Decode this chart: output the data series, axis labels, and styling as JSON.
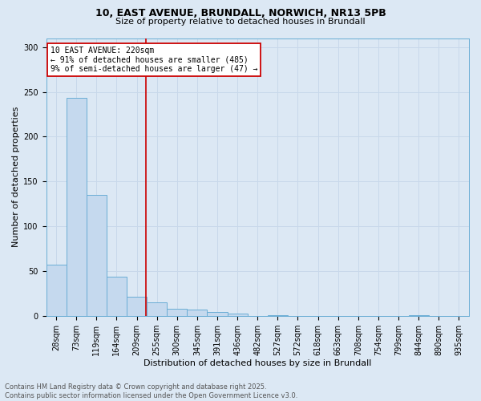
{
  "title_line1": "10, EAST AVENUE, BRUNDALL, NORWICH, NR13 5PB",
  "title_line2": "Size of property relative to detached houses in Brundall",
  "categories": [
    "28sqm",
    "73sqm",
    "119sqm",
    "164sqm",
    "209sqm",
    "255sqm",
    "300sqm",
    "345sqm",
    "391sqm",
    "436sqm",
    "482sqm",
    "527sqm",
    "572sqm",
    "618sqm",
    "663sqm",
    "708sqm",
    "754sqm",
    "799sqm",
    "844sqm",
    "890sqm",
    "935sqm"
  ],
  "values": [
    57,
    243,
    135,
    44,
    22,
    15,
    8,
    7,
    5,
    3,
    0,
    1,
    0,
    0,
    0,
    0,
    0,
    0,
    1,
    0,
    0
  ],
  "bar_color": "#c5d9ee",
  "bar_edge_color": "#6aadd5",
  "grid_color": "#c8d8ea",
  "background_color": "#dce8f4",
  "vline_x_index": 4.47,
  "vline_color": "#cc0000",
  "annotation_text": "10 EAST AVENUE: 220sqm\n← 91% of detached houses are smaller (485)\n9% of semi-detached houses are larger (47) →",
  "annotation_box_facecolor": "#ffffff",
  "annotation_box_edgecolor": "#cc0000",
  "xlabel": "Distribution of detached houses by size in Brundall",
  "ylabel": "Number of detached properties",
  "footer_line1": "Contains HM Land Registry data © Crown copyright and database right 2025.",
  "footer_line2": "Contains public sector information licensed under the Open Government Licence v3.0.",
  "ylim": [
    0,
    310
  ],
  "yticks": [
    0,
    50,
    100,
    150,
    200,
    250,
    300
  ],
  "title_fontsize": 9,
  "subtitle_fontsize": 8,
  "ylabel_fontsize": 8,
  "xlabel_fontsize": 8,
  "tick_fontsize": 7,
  "ann_fontsize": 7,
  "footer_fontsize": 6
}
